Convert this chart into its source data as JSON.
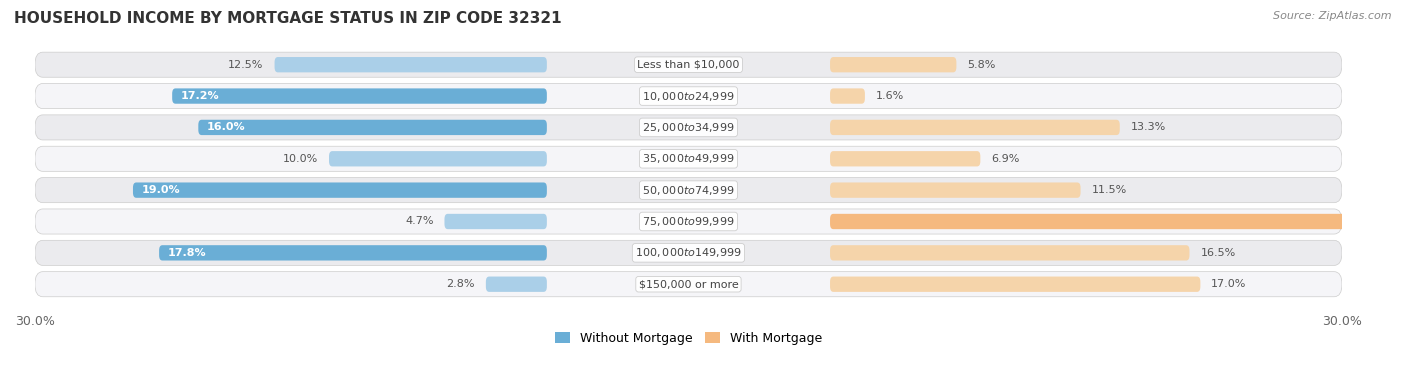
{
  "title": "HOUSEHOLD INCOME BY MORTGAGE STATUS IN ZIP CODE 32321",
  "source": "Source: ZipAtlas.com",
  "categories": [
    "Less than $10,000",
    "$10,000 to $24,999",
    "$25,000 to $34,999",
    "$35,000 to $49,999",
    "$50,000 to $74,999",
    "$75,000 to $99,999",
    "$100,000 to $149,999",
    "$150,000 or more"
  ],
  "without_mortgage": [
    12.5,
    17.2,
    16.0,
    10.0,
    19.0,
    4.7,
    17.8,
    2.8
  ],
  "with_mortgage": [
    5.8,
    1.6,
    13.3,
    6.9,
    11.5,
    26.6,
    16.5,
    17.0
  ],
  "color_without": "#6aaed6",
  "color_without_light": "#aacfe8",
  "color_with": "#f5b97f",
  "color_with_light": "#f5d4aa",
  "axis_limit": 30.0,
  "bg_color": "#ffffff",
  "row_bg": "#ebebee",
  "row_bg_alt": "#f5f5f8",
  "title_fontsize": 11,
  "label_fontsize": 8,
  "category_fontsize": 8,
  "legend_fontsize": 9,
  "legend_without": "Without Mortgage",
  "legend_with": "With Mortgage",
  "axis_label_left": "30.0%",
  "axis_label_right": "30.0%"
}
